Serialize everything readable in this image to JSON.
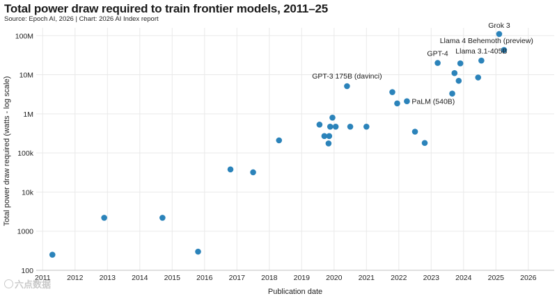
{
  "chart_data": {
    "type": "scatter",
    "title": "Total power draw required to train frontier models, 2011–25",
    "source": "Source: Epoch AI, 2026 | Chart: 2026 AI Index report",
    "xlabel": "Publication date",
    "ylabel": "Total power draw required (watts - log scale)",
    "xlim": [
      2010.8,
      2026.8
    ],
    "ylim_log10": [
      2,
      8.2
    ],
    "y_scale": "log",
    "x_ticks": [
      2011,
      2012,
      2013,
      2014,
      2015,
      2016,
      2017,
      2018,
      2019,
      2020,
      2021,
      2022,
      2023,
      2024,
      2025,
      2026
    ],
    "y_ticks": [
      {
        "value": 100,
        "label": "100"
      },
      {
        "value": 1000,
        "label": "1000"
      },
      {
        "value": 10000,
        "label": "10k"
      },
      {
        "value": 100000,
        "label": "100k"
      },
      {
        "value": 1000000,
        "label": "1M"
      },
      {
        "value": 10000000,
        "label": "10M"
      },
      {
        "value": 100000000,
        "label": "100M"
      }
    ],
    "point_color": "#2b83ba",
    "points": [
      {
        "x": 2011.3,
        "y": 250
      },
      {
        "x": 2012.9,
        "y": 2200
      },
      {
        "x": 2014.7,
        "y": 2200
      },
      {
        "x": 2015.8,
        "y": 300
      },
      {
        "x": 2016.8,
        "y": 38000
      },
      {
        "x": 2017.5,
        "y": 32000
      },
      {
        "x": 2018.3,
        "y": 210000
      },
      {
        "x": 2019.55,
        "y": 530000
      },
      {
        "x": 2019.7,
        "y": 270000
      },
      {
        "x": 2019.83,
        "y": 175000
      },
      {
        "x": 2019.85,
        "y": 270000
      },
      {
        "x": 2019.88,
        "y": 470000
      },
      {
        "x": 2019.95,
        "y": 800000
      },
      {
        "x": 2020.05,
        "y": 470000
      },
      {
        "x": 2020.4,
        "y": 5100000,
        "label": "GPT-3 175B (davinci)"
      },
      {
        "x": 2020.5,
        "y": 470000
      },
      {
        "x": 2021.0,
        "y": 470000
      },
      {
        "x": 2021.8,
        "y": 3600000
      },
      {
        "x": 2021.95,
        "y": 1850000
      },
      {
        "x": 2022.25,
        "y": 2100000,
        "label": "PaLM (540B)"
      },
      {
        "x": 2022.5,
        "y": 350000
      },
      {
        "x": 2022.8,
        "y": 180000
      },
      {
        "x": 2023.2,
        "y": 20000000,
        "label": "GPT-4"
      },
      {
        "x": 2023.65,
        "y": 3300000
      },
      {
        "x": 2023.72,
        "y": 11000000
      },
      {
        "x": 2023.85,
        "y": 7000000
      },
      {
        "x": 2023.9,
        "y": 19500000
      },
      {
        "x": 2024.45,
        "y": 8500000
      },
      {
        "x": 2024.55,
        "y": 23000000,
        "label": "Llama 3.1-405B"
      },
      {
        "x": 2025.1,
        "y": 110000000,
        "label": "Grok 3"
      },
      {
        "x": 2025.25,
        "y": 43000000,
        "label": "Llama 4 Behemoth (preview)"
      }
    ]
  },
  "watermark": "六点数据"
}
